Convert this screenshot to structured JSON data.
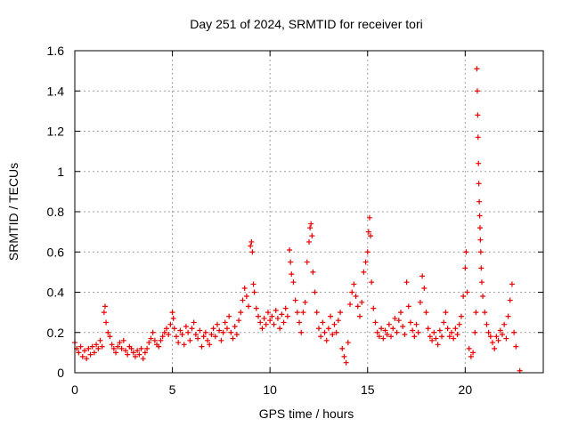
{
  "chart_data": {
    "type": "scatter",
    "title": "Day 251 of 2024, SRMTID for receiver tori",
    "xlabel": "GPS time / hours",
    "ylabel": "SRMTID / TECUs",
    "xlim": [
      0,
      24
    ],
    "ylim": [
      0,
      1.6
    ],
    "grid": true,
    "x_ticks": [
      0,
      5,
      10,
      15,
      20
    ],
    "x_tick_labels": [
      "0",
      "5",
      "10",
      "15",
      "20"
    ],
    "y_ticks": [
      0,
      0.2,
      0.4,
      0.6,
      0.8,
      1.0,
      1.2,
      1.4,
      1.6
    ],
    "y_tick_labels": [
      "0",
      "0.2",
      "0.4",
      "0.6",
      "0.8",
      "1",
      "1.2",
      "1.4",
      "1.6"
    ],
    "marker": "plus",
    "color": "#e60000",
    "series": [
      {
        "name": "SRMTID",
        "points": [
          [
            0.0,
            0.15
          ],
          [
            0.1,
            0.12
          ],
          [
            0.2,
            0.1
          ],
          [
            0.3,
            0.13
          ],
          [
            0.4,
            0.08
          ],
          [
            0.5,
            0.11
          ],
          [
            0.6,
            0.07
          ],
          [
            0.7,
            0.12
          ],
          [
            0.8,
            0.09
          ],
          [
            0.9,
            0.13
          ],
          [
            1.0,
            0.1
          ],
          [
            1.1,
            0.14
          ],
          [
            1.2,
            0.12
          ],
          [
            1.3,
            0.16
          ],
          [
            1.4,
            0.13
          ],
          [
            1.5,
            0.3
          ],
          [
            1.55,
            0.33
          ],
          [
            1.6,
            0.25
          ],
          [
            1.7,
            0.2
          ],
          [
            1.8,
            0.18
          ],
          [
            1.9,
            0.14
          ],
          [
            2.0,
            0.12
          ],
          [
            2.1,
            0.1
          ],
          [
            2.2,
            0.13
          ],
          [
            2.3,
            0.15
          ],
          [
            2.4,
            0.12
          ],
          [
            2.5,
            0.16
          ],
          [
            2.6,
            0.11
          ],
          [
            2.7,
            0.09
          ],
          [
            2.8,
            0.13
          ],
          [
            2.9,
            0.12
          ],
          [
            3.0,
            0.1
          ],
          [
            3.1,
            0.08
          ],
          [
            3.2,
            0.11
          ],
          [
            3.3,
            0.09
          ],
          [
            3.4,
            0.12
          ],
          [
            3.5,
            0.07
          ],
          [
            3.6,
            0.1
          ],
          [
            3.7,
            0.12
          ],
          [
            3.8,
            0.15
          ],
          [
            3.9,
            0.17
          ],
          [
            4.0,
            0.2
          ],
          [
            4.1,
            0.16
          ],
          [
            4.2,
            0.14
          ],
          [
            4.3,
            0.13
          ],
          [
            4.4,
            0.16
          ],
          [
            4.5,
            0.18
          ],
          [
            4.6,
            0.2
          ],
          [
            4.7,
            0.22
          ],
          [
            4.8,
            0.19
          ],
          [
            4.9,
            0.24
          ],
          [
            5.0,
            0.3
          ],
          [
            5.05,
            0.27
          ],
          [
            5.1,
            0.22
          ],
          [
            5.2,
            0.18
          ],
          [
            5.3,
            0.15
          ],
          [
            5.4,
            0.21
          ],
          [
            5.5,
            0.19
          ],
          [
            5.6,
            0.14
          ],
          [
            5.7,
            0.23
          ],
          [
            5.8,
            0.2
          ],
          [
            5.9,
            0.16
          ],
          [
            6.0,
            0.22
          ],
          [
            6.1,
            0.25
          ],
          [
            6.2,
            0.19
          ],
          [
            6.3,
            0.17
          ],
          [
            6.4,
            0.21
          ],
          [
            6.5,
            0.13
          ],
          [
            6.6,
            0.18
          ],
          [
            6.7,
            0.2
          ],
          [
            6.8,
            0.16
          ],
          [
            6.9,
            0.14
          ],
          [
            7.0,
            0.19
          ],
          [
            7.1,
            0.22
          ],
          [
            7.2,
            0.18
          ],
          [
            7.3,
            0.24
          ],
          [
            7.4,
            0.21
          ],
          [
            7.5,
            0.16
          ],
          [
            7.6,
            0.2
          ],
          [
            7.7,
            0.25
          ],
          [
            7.8,
            0.22
          ],
          [
            7.9,
            0.28
          ],
          [
            8.0,
            0.2
          ],
          [
            8.1,
            0.17
          ],
          [
            8.2,
            0.23
          ],
          [
            8.3,
            0.19
          ],
          [
            8.4,
            0.26
          ],
          [
            8.5,
            0.3
          ],
          [
            8.6,
            0.36
          ],
          [
            8.7,
            0.42
          ],
          [
            8.8,
            0.38
          ],
          [
            8.9,
            0.33
          ],
          [
            9.0,
            0.63
          ],
          [
            9.05,
            0.65
          ],
          [
            9.1,
            0.6
          ],
          [
            9.15,
            0.44
          ],
          [
            9.2,
            0.4
          ],
          [
            9.3,
            0.32
          ],
          [
            9.4,
            0.28
          ],
          [
            9.5,
            0.25
          ],
          [
            9.6,
            0.22
          ],
          [
            9.7,
            0.27
          ],
          [
            9.8,
            0.24
          ],
          [
            9.9,
            0.3
          ],
          [
            10.0,
            0.26
          ],
          [
            10.1,
            0.28
          ],
          [
            10.2,
            0.24
          ],
          [
            10.3,
            0.31
          ],
          [
            10.4,
            0.27
          ],
          [
            10.5,
            0.22
          ],
          [
            10.6,
            0.29
          ],
          [
            10.7,
            0.25
          ],
          [
            10.8,
            0.32
          ],
          [
            10.9,
            0.28
          ],
          [
            11.0,
            0.61
          ],
          [
            11.05,
            0.55
          ],
          [
            11.1,
            0.49
          ],
          [
            11.2,
            0.45
          ],
          [
            11.3,
            0.36
          ],
          [
            11.4,
            0.3
          ],
          [
            11.5,
            0.25
          ],
          [
            11.6,
            0.2
          ],
          [
            11.7,
            0.3
          ],
          [
            11.8,
            0.35
          ],
          [
            11.9,
            0.55
          ],
          [
            12.0,
            0.65
          ],
          [
            12.05,
            0.72
          ],
          [
            12.1,
            0.74
          ],
          [
            12.15,
            0.68
          ],
          [
            12.2,
            0.5
          ],
          [
            12.3,
            0.4
          ],
          [
            12.4,
            0.3
          ],
          [
            12.5,
            0.22
          ],
          [
            12.6,
            0.18
          ],
          [
            12.7,
            0.25
          ],
          [
            12.8,
            0.2
          ],
          [
            12.9,
            0.16
          ],
          [
            13.0,
            0.22
          ],
          [
            13.1,
            0.28
          ],
          [
            13.2,
            0.19
          ],
          [
            13.3,
            0.24
          ],
          [
            13.4,
            0.2
          ],
          [
            13.5,
            0.26
          ],
          [
            13.6,
            0.3
          ],
          [
            13.7,
            0.12
          ],
          [
            13.8,
            0.08
          ],
          [
            13.9,
            0.05
          ],
          [
            14.0,
            0.15
          ],
          [
            14.1,
            0.34
          ],
          [
            14.2,
            0.4
          ],
          [
            14.3,
            0.44
          ],
          [
            14.4,
            0.38
          ],
          [
            14.5,
            0.33
          ],
          [
            14.6,
            0.28
          ],
          [
            14.7,
            0.35
          ],
          [
            14.8,
            0.5
          ],
          [
            14.9,
            0.55
          ],
          [
            15.0,
            0.6
          ],
          [
            15.05,
            0.7
          ],
          [
            15.1,
            0.77
          ],
          [
            15.15,
            0.68
          ],
          [
            15.2,
            0.45
          ],
          [
            15.3,
            0.32
          ],
          [
            15.4,
            0.25
          ],
          [
            15.5,
            0.2
          ],
          [
            15.6,
            0.18
          ],
          [
            15.7,
            0.22
          ],
          [
            15.8,
            0.17
          ],
          [
            15.9,
            0.21
          ],
          [
            16.0,
            0.19
          ],
          [
            16.1,
            0.24
          ],
          [
            16.2,
            0.18
          ],
          [
            16.3,
            0.22
          ],
          [
            16.4,
            0.27
          ],
          [
            16.5,
            0.2
          ],
          [
            16.6,
            0.26
          ],
          [
            16.7,
            0.3
          ],
          [
            16.8,
            0.23
          ],
          [
            16.9,
            0.19
          ],
          [
            17.0,
            0.45
          ],
          [
            17.1,
            0.33
          ],
          [
            17.2,
            0.25
          ],
          [
            17.3,
            0.21
          ],
          [
            17.4,
            0.18
          ],
          [
            17.5,
            0.24
          ],
          [
            17.6,
            0.2
          ],
          [
            17.7,
            0.35
          ],
          [
            17.8,
            0.48
          ],
          [
            17.9,
            0.42
          ],
          [
            18.0,
            0.3
          ],
          [
            18.1,
            0.22
          ],
          [
            18.2,
            0.18
          ],
          [
            18.3,
            0.16
          ],
          [
            18.4,
            0.2
          ],
          [
            18.5,
            0.17
          ],
          [
            18.6,
            0.14
          ],
          [
            18.7,
            0.21
          ],
          [
            18.8,
            0.18
          ],
          [
            18.9,
            0.25
          ],
          [
            19.0,
            0.3
          ],
          [
            19.1,
            0.22
          ],
          [
            19.2,
            0.18
          ],
          [
            19.3,
            0.2
          ],
          [
            19.4,
            0.17
          ],
          [
            19.5,
            0.22
          ],
          [
            19.6,
            0.19
          ],
          [
            19.7,
            0.24
          ],
          [
            19.8,
            0.28
          ],
          [
            19.9,
            0.38
          ],
          [
            20.0,
            0.52
          ],
          [
            20.05,
            0.6
          ],
          [
            20.1,
            0.4
          ],
          [
            20.2,
            0.12
          ],
          [
            20.3,
            0.08
          ],
          [
            20.4,
            0.1
          ],
          [
            20.5,
            0.2
          ],
          [
            20.55,
            0.3
          ],
          [
            20.6,
            1.51
          ],
          [
            20.62,
            1.4
          ],
          [
            20.64,
            1.28
          ],
          [
            20.66,
            1.17
          ],
          [
            20.68,
            1.04
          ],
          [
            20.7,
            0.94
          ],
          [
            20.72,
            0.85
          ],
          [
            20.74,
            0.78
          ],
          [
            20.76,
            0.72
          ],
          [
            20.78,
            0.66
          ],
          [
            20.8,
            0.6
          ],
          [
            20.82,
            0.52
          ],
          [
            20.85,
            0.45
          ],
          [
            20.9,
            0.38
          ],
          [
            21.0,
            0.3
          ],
          [
            21.1,
            0.24
          ],
          [
            21.2,
            0.2
          ],
          [
            21.3,
            0.18
          ],
          [
            21.4,
            0.15
          ],
          [
            21.5,
            0.12
          ],
          [
            21.6,
            0.18
          ],
          [
            21.7,
            0.16
          ],
          [
            21.8,
            0.21
          ],
          [
            21.9,
            0.19
          ],
          [
            22.0,
            0.24
          ],
          [
            22.1,
            0.17
          ],
          [
            22.2,
            0.28
          ],
          [
            22.3,
            0.36
          ],
          [
            22.4,
            0.44
          ],
          [
            22.5,
            0.2
          ],
          [
            22.6,
            0.13
          ],
          [
            22.8,
            0.01
          ]
        ]
      }
    ]
  }
}
